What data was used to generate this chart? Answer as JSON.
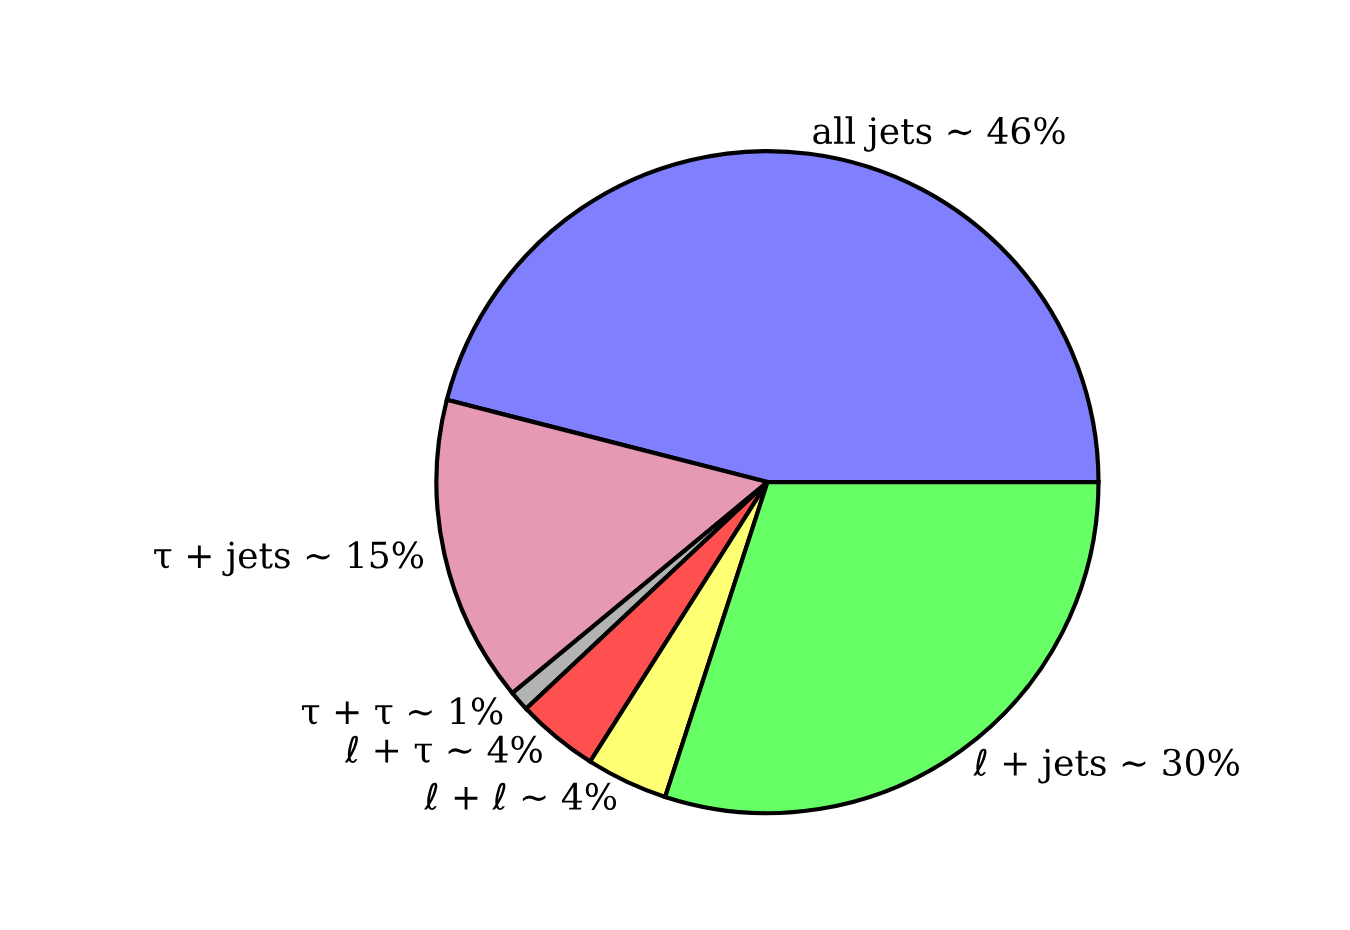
{
  "chart_data": {
    "type": "pie",
    "categories": [
      "all jets ∼ 46%",
      "τ + jets ∼ 15%",
      "τ + τ ∼ 1%",
      "ℓ + τ ∼ 4%",
      "ℓ + ℓ ∼ 4%",
      "ℓ + jets ∼ 30%"
    ],
    "values": [
      46,
      15,
      1,
      4,
      4,
      30
    ],
    "colors": [
      "#8080ff",
      "#e699b3",
      "#b3b3b3",
      "#ff5050",
      "#ffff73",
      "#66ff66"
    ],
    "legend": false
  }
}
